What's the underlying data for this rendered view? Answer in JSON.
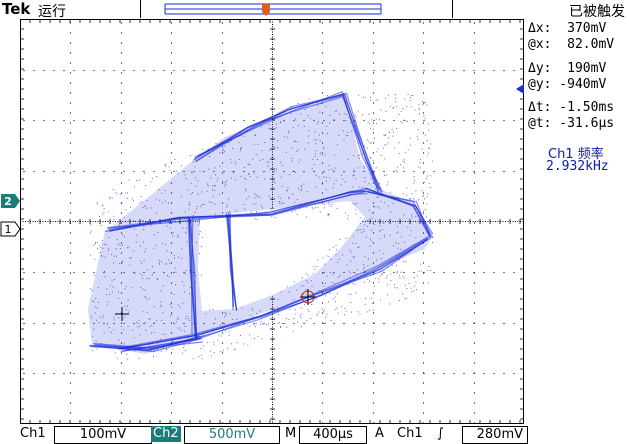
{
  "header": {
    "brand": "Tek",
    "run_state": "运行",
    "trigger_state": "已被触发"
  },
  "readouts": {
    "dx": "Δx:  370mV",
    "ax": "@x:  82.0mV",
    "dy": "Δy:  190mV",
    "ay": "@y: -940mV",
    "dt": "Δt: -1.50ms",
    "at": "@t: -31.6μs"
  },
  "measurement": {
    "label": "Ch1 频率",
    "value": "2.932kHz"
  },
  "footer": {
    "ch1_label": "Ch1",
    "ch1_scale": "100mV",
    "ch2_label": "Ch2",
    "ch2_scale": "500mV",
    "time_label": "M",
    "time_scale": "400μs",
    "trigger_mode": "A",
    "trigger_source": "Ch1",
    "trigger_slope": "∫",
    "trigger_level": "280mV"
  },
  "markers": {
    "ch2": "2",
    "ch1": "1",
    "trigger": "T"
  },
  "colors": {
    "trace": "#1a2bd8",
    "ch2": "#1b7d78",
    "trigger": "#e0601a",
    "readout_accent": "#0b1aa8"
  }
}
